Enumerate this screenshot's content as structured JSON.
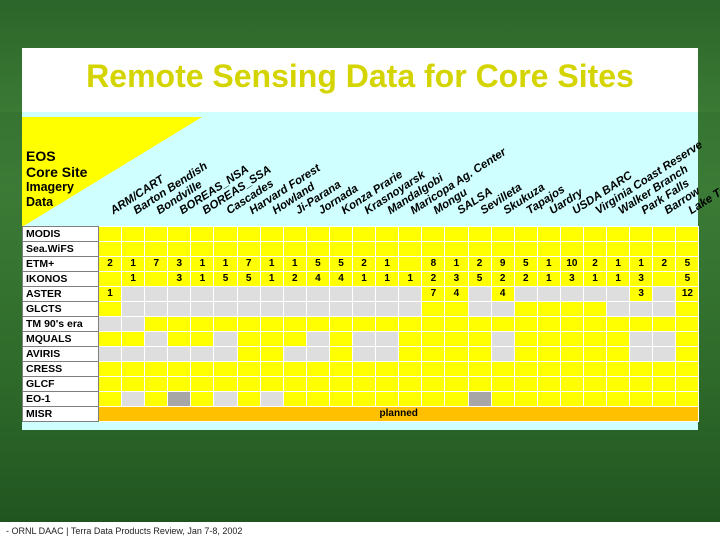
{
  "slide": {
    "title": "Remote Sensing Data for Core Sites",
    "footer": "- ORNL DAAC | Terra Data Products Review, Jan 7-8, 2002"
  },
  "table": {
    "header_line1": "EOS",
    "header_line2": "Core Site",
    "header_line3": "Imagery",
    "header_line4": "Data",
    "sites": [
      "ARM/CART",
      "Barton Bendish",
      "Bondville",
      "BOREAS_NSA",
      "BOREAS_SSA",
      "Cascades",
      "Harvard Forest",
      "Howland",
      "Ji-Parana",
      "Jornada",
      "Konza Prarie",
      "Krasnoyarsk",
      "Mandalgobi",
      "Maricopa Ag. Center",
      "Mongu",
      "SALSA",
      "Sevilleta",
      "Skukuza",
      "Tapajos",
      "Uardry",
      "USDA BARC",
      "Virginia Coast Reserve",
      "Walker Branch",
      "Park Falls",
      "Barrow",
      "Lake Tahoe"
    ],
    "rows": [
      {
        "label": "MODIS",
        "cells": [
          "y",
          "y",
          "y",
          "y",
          "y",
          "y",
          "y",
          "y",
          "y",
          "y",
          "y",
          "y",
          "y",
          "y",
          "y",
          "y",
          "y",
          "y",
          "y",
          "y",
          "y",
          "y",
          "y",
          "y",
          "y",
          "y"
        ],
        "values": []
      },
      {
        "label": "Sea.WiFS",
        "cells": [
          "y",
          "y",
          "y",
          "y",
          "y",
          "y",
          "y",
          "y",
          "y",
          "y",
          "y",
          "y",
          "y",
          "y",
          "y",
          "y",
          "y",
          "y",
          "y",
          "y",
          "y",
          "y",
          "y",
          "y",
          "y",
          "y"
        ],
        "values": []
      },
      {
        "label": "ETM+",
        "cells": [
          "y",
          "y",
          "y",
          "y",
          "y",
          "y",
          "y",
          "y",
          "y",
          "y",
          "y",
          "y",
          "y",
          "y",
          "y",
          "y",
          "y",
          "y",
          "y",
          "y",
          "y",
          "y",
          "y",
          "y",
          "y",
          "y"
        ],
        "values": [
          "2",
          "1",
          "7",
          "3",
          "1",
          "1",
          "7",
          "1",
          "1",
          "5",
          "5",
          "2",
          "1",
          "",
          "8",
          "1",
          "2",
          "9",
          "5",
          "1",
          "10",
          "2",
          "1",
          "1",
          "2",
          "5"
        ]
      },
      {
        "label": "IKONOS",
        "cells": [
          "y",
          "y",
          "y",
          "y",
          "y",
          "y",
          "y",
          "y",
          "y",
          "y",
          "y",
          "y",
          "y",
          "y",
          "y",
          "y",
          "y",
          "y",
          "y",
          "y",
          "y",
          "y",
          "y",
          "y",
          "y",
          "y"
        ],
        "values": [
          "",
          "1",
          "",
          "3",
          "1",
          "5",
          "5",
          "1",
          "2",
          "4",
          "4",
          "1",
          "1",
          "1",
          "2",
          "3",
          "5",
          "2",
          "2",
          "1",
          "3",
          "1",
          "1",
          "3",
          "",
          "5"
        ]
      },
      {
        "label": "ASTER",
        "cells": [
          "y",
          "l",
          "l",
          "l",
          "l",
          "l",
          "l",
          "l",
          "l",
          "l",
          "l",
          "l",
          "l",
          "l",
          "y",
          "y",
          "l",
          "y",
          "l",
          "l",
          "l",
          "l",
          "l",
          "y",
          "l",
          "y"
        ],
        "values": [
          "1",
          "",
          "",
          "",
          "",
          "",
          "",
          "",
          "",
          "",
          "",
          "",
          "",
          "",
          "7",
          "4",
          "",
          "4",
          "",
          "",
          "",
          "",
          "",
          "3",
          "",
          "12"
        ]
      },
      {
        "label": "GLCTS",
        "cells": [
          "y",
          "l",
          "l",
          "l",
          "l",
          "l",
          "l",
          "l",
          "l",
          "l",
          "l",
          "l",
          "l",
          "l",
          "y",
          "y",
          "l",
          "l",
          "y",
          "y",
          "y",
          "y",
          "l",
          "l",
          "l",
          "y"
        ],
        "values": []
      },
      {
        "label": "TM 90's era",
        "cells": [
          "l",
          "l",
          "y",
          "y",
          "y",
          "y",
          "y",
          "y",
          "y",
          "y",
          "y",
          "y",
          "y",
          "y",
          "y",
          "y",
          "y",
          "y",
          "y",
          "y",
          "y",
          "y",
          "y",
          "y",
          "y",
          "y"
        ],
        "values": []
      },
      {
        "label": "MQUALS",
        "cells": [
          "y",
          "y",
          "l",
          "y",
          "y",
          "l",
          "y",
          "y",
          "y",
          "l",
          "y",
          "l",
          "l",
          "y",
          "y",
          "y",
          "y",
          "l",
          "y",
          "y",
          "y",
          "y",
          "y",
          "l",
          "l",
          "y"
        ],
        "values": []
      },
      {
        "label": "AVIRIS",
        "cells": [
          "l",
          "l",
          "l",
          "l",
          "l",
          "l",
          "y",
          "y",
          "l",
          "l",
          "y",
          "l",
          "l",
          "y",
          "y",
          "y",
          "y",
          "l",
          "y",
          "y",
          "y",
          "y",
          "y",
          "l",
          "l",
          "y"
        ],
        "values": []
      },
      {
        "label": "CRESS",
        "cells": [
          "y",
          "y",
          "y",
          "y",
          "y",
          "y",
          "y",
          "y",
          "y",
          "y",
          "y",
          "y",
          "y",
          "y",
          "y",
          "y",
          "y",
          "y",
          "y",
          "y",
          "y",
          "y",
          "y",
          "y",
          "y",
          "y"
        ],
        "values": []
      },
      {
        "label": "GLCF",
        "cells": [
          "y",
          "y",
          "y",
          "y",
          "y",
          "y",
          "y",
          "y",
          "y",
          "y",
          "y",
          "y",
          "y",
          "y",
          "y",
          "y",
          "y",
          "y",
          "y",
          "y",
          "y",
          "y",
          "y",
          "y",
          "y",
          "y"
        ],
        "values": []
      },
      {
        "label": "EO-1",
        "cells": [
          "y",
          "l",
          "y",
          "g",
          "y",
          "l",
          "y",
          "l",
          "y",
          "y",
          "y",
          "y",
          "y",
          "y",
          "y",
          "y",
          "g",
          "y",
          "y",
          "y",
          "y",
          "y",
          "y",
          "y",
          "y",
          "y"
        ],
        "values": []
      },
      {
        "label": "MISR",
        "cells": [],
        "values": [],
        "note": "planned"
      }
    ]
  }
}
